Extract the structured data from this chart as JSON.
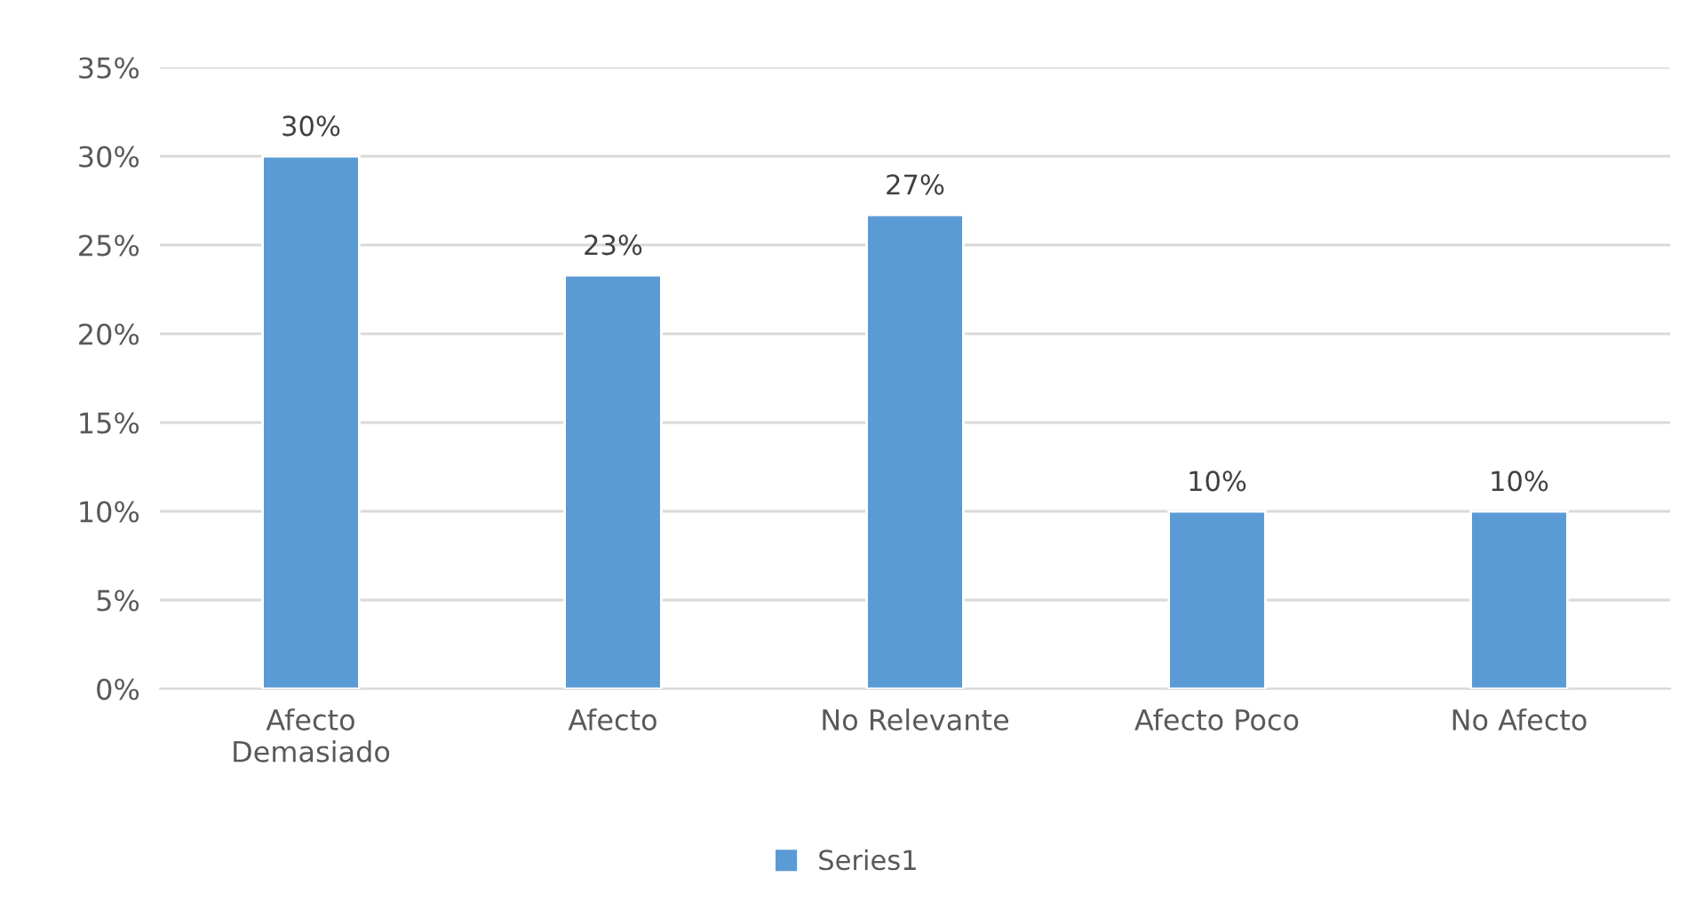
{
  "chart_data": {
    "type": "bar",
    "categories": [
      "Afecto\nDemasiado",
      "Afecto",
      "No Relevante",
      "Afecto Poco",
      "No Afecto"
    ],
    "series": [
      {
        "name": "Series1",
        "color": "#5b9bd5",
        "values": [
          30,
          23.3,
          26.7,
          10,
          10
        ],
        "value_labels": [
          "30%",
          "23%",
          "27%",
          "10%",
          "10%"
        ]
      }
    ],
    "ylim": [
      0,
      35
    ],
    "yticks": [
      {
        "value": 0,
        "label": "0%"
      },
      {
        "value": 5,
        "label": "5%"
      },
      {
        "value": 10,
        "label": "10%"
      },
      {
        "value": 15,
        "label": "15%"
      },
      {
        "value": 20,
        "label": "20%"
      },
      {
        "value": 25,
        "label": "25%"
      },
      {
        "value": 30,
        "label": "30%"
      },
      {
        "value": 35,
        "label": "35%"
      }
    ],
    "grid": "y",
    "legend": "bottom"
  }
}
